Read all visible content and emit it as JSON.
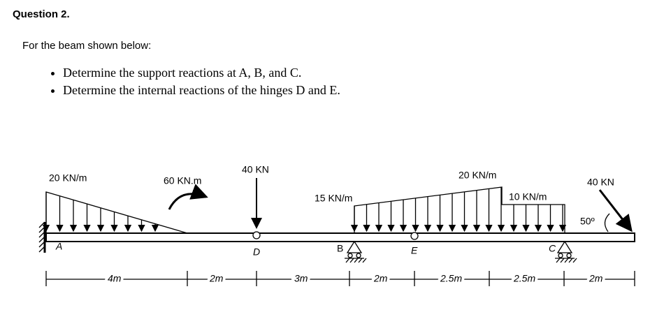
{
  "question": {
    "title": "Question 2.",
    "intro": "For the beam shown below:",
    "bullets": [
      "Determine the support reactions at A, B, and C.",
      "Determine the internal reactions of the hinges D and E."
    ]
  },
  "diagram": {
    "loads": [
      "20 KN/m",
      "60 KN.m",
      "40 KN",
      "15 KN/m",
      "20 KN/m",
      "10 KN/m",
      "40 KN"
    ],
    "angle": "50º",
    "points": [
      "A",
      "D",
      "B",
      "E",
      "C"
    ],
    "dimensions": [
      "4m",
      "2m",
      "3m",
      "2m",
      "2.5m",
      "2.5m",
      "2m"
    ]
  }
}
